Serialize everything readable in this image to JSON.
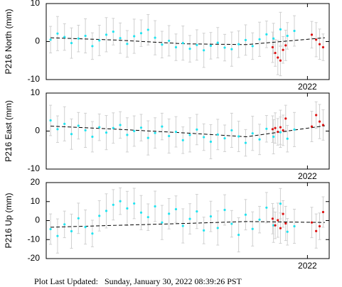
{
  "chart_data": [
    {
      "type": "scatter",
      "ylabel": "P216 North (mm)",
      "xlim": [
        2019.0,
        2022.25
      ],
      "xticks": [
        2022
      ],
      "ylim": [
        -10,
        10
      ],
      "yticks": [
        -10,
        0,
        10
      ],
      "series": [
        {
          "color": "#22e4f0",
          "error_color": "#d0d0d0",
          "x": [
            2019.05,
            2019.13,
            2019.21,
            2019.29,
            2019.37,
            2019.45,
            2019.53,
            2019.61,
            2019.69,
            2019.77,
            2019.85,
            2019.93,
            2020.01,
            2020.09,
            2020.17,
            2020.25,
            2020.33,
            2020.41,
            2020.49,
            2020.57,
            2020.65,
            2020.73,
            2020.81,
            2020.89,
            2020.97,
            2021.05,
            2021.13,
            2021.21,
            2021.29,
            2021.37,
            2021.45,
            2021.53,
            2021.61,
            2021.69,
            2021.77,
            2021.85
          ],
          "values": [
            0.5,
            2.1,
            1.2,
            -0.4,
            0.8,
            1.5,
            -1.2,
            0.3,
            1.8,
            2.6,
            0.9,
            -0.6,
            1.4,
            2.2,
            3.1,
            1.0,
            -0.8,
            0.2,
            -1.5,
            -0.4,
            -1.9,
            -0.9,
            -2.3,
            -1.1,
            -0.3,
            -1.6,
            -2.0,
            -0.7,
            0.4,
            -1.2,
            0.6,
            1.9,
            0.8,
            3.2,
            1.5,
            2.8
          ],
          "errors": [
            3.5,
            4.5,
            3.5,
            4.0,
            3.5,
            4.5,
            3.5,
            4.0,
            4.5,
            3.5,
            4.0,
            3.5,
            4.5,
            3.5,
            4.0,
            4.5,
            3.5,
            4.0,
            3.5,
            4.5,
            3.5,
            4.0,
            4.5,
            3.5,
            4.0,
            3.5,
            4.5,
            3.5,
            4.0,
            3.5,
            4.5,
            3.5,
            4.0,
            4.5,
            3.5,
            4.0
          ]
        },
        {
          "color": "#dd1111",
          "error_color": "#d0d0d0",
          "x": [
            2021.6,
            2021.63,
            2021.66,
            2021.69,
            2021.72,
            2021.75,
            2022.05,
            2022.1,
            2022.14,
            2022.18
          ],
          "values": [
            -1.5,
            -3.0,
            -4.2,
            -5.0,
            -2.2,
            -1.0,
            1.8,
            0.5,
            -0.7,
            -1.5
          ],
          "errors": [
            4.0,
            3.5,
            4.5,
            4.0,
            3.5,
            4.0,
            3.5,
            4.5,
            4.0,
            3.5
          ]
        },
        {
          "kind": "line",
          "dashed": true,
          "color": "#000000",
          "x": [
            2019.05,
            2019.8,
            2020.6,
            2021.3,
            2022.2
          ],
          "values": [
            1.0,
            0.4,
            -0.6,
            -0.8,
            1.0
          ]
        }
      ]
    },
    {
      "type": "scatter",
      "ylabel": "P216 East (mm)",
      "xlim": [
        2019.0,
        2022.25
      ],
      "xticks": [
        2022
      ],
      "ylim": [
        -10,
        10
      ],
      "yticks": [
        -10,
        0,
        10
      ],
      "series": [
        {
          "color": "#22e4f0",
          "error_color": "#d0d0d0",
          "x": [
            2019.05,
            2019.13,
            2019.21,
            2019.29,
            2019.37,
            2019.45,
            2019.53,
            2019.61,
            2019.69,
            2019.77,
            2019.85,
            2019.93,
            2020.01,
            2020.09,
            2020.17,
            2020.25,
            2020.33,
            2020.41,
            2020.49,
            2020.57,
            2020.65,
            2020.73,
            2020.81,
            2020.89,
            2020.97,
            2021.05,
            2021.13,
            2021.21,
            2021.29,
            2021.37,
            2021.45,
            2021.53,
            2021.61,
            2021.69,
            2021.77,
            2021.85
          ],
          "values": [
            2.8,
            0.5,
            1.9,
            -0.8,
            1.4,
            0.2,
            -1.5,
            1.0,
            -0.4,
            0.8,
            1.6,
            -1.0,
            0.0,
            0.9,
            -1.8,
            -0.5,
            1.2,
            -1.3,
            -0.2,
            -2.4,
            -1.0,
            0.4,
            -1.6,
            -2.8,
            -0.9,
            -1.9,
            0.2,
            -1.4,
            -3.1,
            -0.6,
            -2.2,
            0.6,
            -1.5,
            -0.3,
            -2.0,
            0.4
          ],
          "errors": [
            4.0,
            3.5,
            4.5,
            4.0,
            3.5,
            4.5,
            4.0,
            3.5,
            4.5,
            4.0,
            3.5,
            4.5,
            4.0,
            3.5,
            4.5,
            4.0,
            3.5,
            4.5,
            4.0,
            3.5,
            4.5,
            4.0,
            3.5,
            4.5,
            4.0,
            3.5,
            4.5,
            4.0,
            3.5,
            4.5,
            4.0,
            3.5,
            4.5,
            4.0,
            3.5,
            4.5
          ]
        },
        {
          "color": "#dd1111",
          "error_color": "#d0d0d0",
          "x": [
            2021.6,
            2021.63,
            2021.66,
            2021.69,
            2021.72,
            2021.75,
            2022.05,
            2022.1,
            2022.14,
            2022.18
          ],
          "values": [
            0.5,
            0.8,
            -0.2,
            1.0,
            0.2,
            3.3,
            1.2,
            4.2,
            2.5,
            1.6
          ],
          "errors": [
            3.5,
            4.0,
            3.5,
            4.5,
            4.0,
            3.5,
            4.0,
            3.5,
            4.5,
            4.0
          ]
        },
        {
          "kind": "line",
          "dashed": true,
          "color": "#000000",
          "x": [
            2019.05,
            2019.8,
            2020.6,
            2021.3,
            2022.2
          ],
          "values": [
            1.3,
            0.5,
            -0.5,
            -1.5,
            1.4
          ]
        }
      ]
    },
    {
      "type": "scatter",
      "ylabel": "P216 Up (mm)",
      "xlim": [
        2019.0,
        2022.25
      ],
      "xticks": [
        2022
      ],
      "ylim": [
        -20,
        20
      ],
      "yticks": [
        -20,
        -10,
        0,
        10,
        20
      ],
      "series": [
        {
          "color": "#22e4f0",
          "error_color": "#d0d0d0",
          "x": [
            2019.05,
            2019.13,
            2019.21,
            2019.29,
            2019.37,
            2019.45,
            2019.53,
            2019.61,
            2019.69,
            2019.77,
            2019.85,
            2019.93,
            2020.01,
            2020.09,
            2020.17,
            2020.25,
            2020.33,
            2020.41,
            2020.49,
            2020.57,
            2020.65,
            2020.73,
            2020.81,
            2020.89,
            2020.97,
            2021.05,
            2021.13,
            2021.21,
            2021.29,
            2021.37,
            2021.45,
            2021.53,
            2021.61,
            2021.69,
            2021.77,
            2021.85
          ],
          "values": [
            -4.5,
            -8.1,
            -2.0,
            -5.6,
            1.2,
            -3.4,
            -6.8,
            2.5,
            5.1,
            8.3,
            10.2,
            6.4,
            9.0,
            4.2,
            1.8,
            7.5,
            -1.0,
            3.6,
            6.0,
            -2.8,
            0.9,
            4.8,
            -5.2,
            2.2,
            -3.9,
            5.6,
            -1.7,
            -7.5,
            3.1,
            -4.4,
            0.5,
            6.8,
            -2.5,
            8.9,
            -5.9,
            -3.0
          ],
          "errors": [
            8,
            9,
            7,
            9,
            8,
            9,
            7,
            8,
            9,
            8,
            7,
            9,
            8,
            9,
            7,
            8,
            9,
            8,
            7,
            9,
            8,
            9,
            7,
            8,
            9,
            8,
            7,
            9,
            8,
            9,
            7,
            8,
            9,
            8,
            7,
            9
          ]
        },
        {
          "color": "#dd1111",
          "error_color": "#d0d0d0",
          "x": [
            2021.6,
            2021.63,
            2021.66,
            2021.69,
            2021.72,
            2021.75,
            2022.05,
            2022.1,
            2022.14,
            2022.18
          ],
          "values": [
            1.0,
            -2.5,
            0.2,
            -4.0,
            3.5,
            -1.5,
            -1.0,
            -5.5,
            -3.0,
            4.5
          ],
          "errors": [
            8,
            7,
            9,
            8,
            7,
            9,
            8,
            9,
            7,
            8
          ]
        },
        {
          "kind": "line",
          "dashed": true,
          "color": "#000000",
          "x": [
            2019.05,
            2019.8,
            2020.6,
            2021.3,
            2022.2
          ],
          "values": [
            -3.5,
            -2.5,
            -1.5,
            -0.5,
            -1.0
          ]
        }
      ]
    }
  ],
  "footer": {
    "label": "Plot Last Updated:",
    "date": "Sunday, January 30, 2022 08:39:26 PST"
  }
}
